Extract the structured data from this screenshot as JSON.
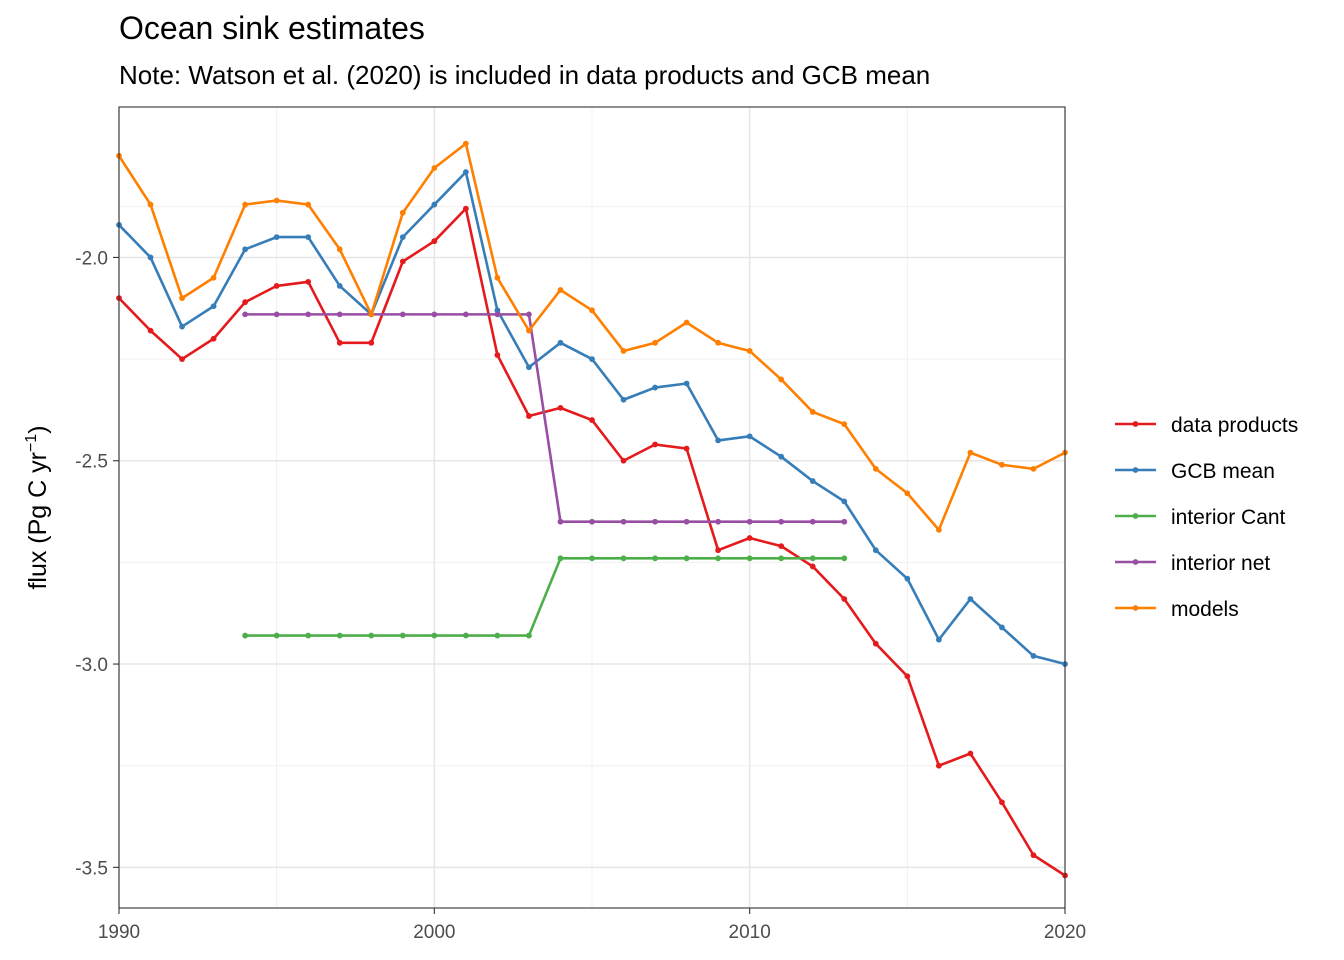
{
  "chart_data": {
    "type": "line",
    "title": "Ocean sink estimates",
    "subtitle": "Note: Watson et al. (2020) is included in data products and GCB mean",
    "xlabel": "",
    "ylabel": "flux (Pg C yr",
    "ylabel_sup": "−1",
    "ylabel_end": ")",
    "xlim": [
      1990,
      2020
    ],
    "ylim": [
      -3.6,
      -1.63
    ],
    "x_ticks": [
      1990,
      2000,
      2010,
      2020
    ],
    "x_tick_labels": [
      "1990",
      "2000",
      "2010",
      "2020"
    ],
    "y_ticks": [
      -2.0,
      -2.5,
      -3.0,
      -3.5
    ],
    "y_tick_labels": [
      "-2.0",
      "-2.5",
      "-3.0",
      "-3.5"
    ],
    "grid": true,
    "legend_position": "right",
    "series": [
      {
        "name": "data products",
        "color": "#E41A1C",
        "x": [
          1990,
          1991,
          1992,
          1993,
          1994,
          1995,
          1996,
          1997,
          1998,
          1999,
          2000,
          2001,
          2002,
          2003,
          2004,
          2005,
          2006,
          2007,
          2008,
          2009,
          2010,
          2011,
          2012,
          2013,
          2014,
          2015,
          2016,
          2017,
          2018,
          2019,
          2020
        ],
        "y": [
          -2.1,
          -2.18,
          -2.25,
          -2.2,
          -2.11,
          -2.07,
          -2.06,
          -2.21,
          -2.21,
          -2.01,
          -1.96,
          -1.88,
          -2.24,
          -2.39,
          -2.37,
          -2.4,
          -2.5,
          -2.46,
          -2.47,
          -2.72,
          -2.69,
          -2.71,
          -2.76,
          -2.84,
          -2.95,
          -3.03,
          -3.25,
          -3.22,
          -3.34,
          -3.47,
          -3.52
        ]
      },
      {
        "name": "GCB mean",
        "color": "#377EB8",
        "x": [
          1990,
          1991,
          1992,
          1993,
          1994,
          1995,
          1996,
          1997,
          1998,
          1999,
          2000,
          2001,
          2002,
          2003,
          2004,
          2005,
          2006,
          2007,
          2008,
          2009,
          2010,
          2011,
          2012,
          2013,
          2014,
          2015,
          2016,
          2017,
          2018,
          2019,
          2020
        ],
        "y": [
          -1.92,
          -2.0,
          -2.17,
          -2.12,
          -1.98,
          -1.95,
          -1.95,
          -2.07,
          -2.14,
          -1.95,
          -1.87,
          -1.79,
          -2.13,
          -2.27,
          -2.21,
          -2.25,
          -2.35,
          -2.32,
          -2.31,
          -2.45,
          -2.44,
          -2.49,
          -2.55,
          -2.6,
          -2.72,
          -2.79,
          -2.94,
          -2.84,
          -2.91,
          -2.98,
          -3.0
        ]
      },
      {
        "name": "interior Cant",
        "color": "#4DAF4A",
        "x": [
          1994,
          1995,
          1996,
          1997,
          1998,
          1999,
          2000,
          2001,
          2002,
          2003,
          2004,
          2005,
          2006,
          2007,
          2008,
          2009,
          2010,
          2011,
          2012,
          2013
        ],
        "y": [
          -2.93,
          -2.93,
          -2.93,
          -2.93,
          -2.93,
          -2.93,
          -2.93,
          -2.93,
          -2.93,
          -2.93,
          -2.74,
          -2.74,
          -2.74,
          -2.74,
          -2.74,
          -2.74,
          -2.74,
          -2.74,
          -2.74,
          -2.74
        ]
      },
      {
        "name": "interior net",
        "color": "#984EA3",
        "x": [
          1994,
          1995,
          1996,
          1997,
          1998,
          1999,
          2000,
          2001,
          2002,
          2003,
          2004,
          2005,
          2006,
          2007,
          2008,
          2009,
          2010,
          2011,
          2012,
          2013
        ],
        "y": [
          -2.14,
          -2.14,
          -2.14,
          -2.14,
          -2.14,
          -2.14,
          -2.14,
          -2.14,
          -2.14,
          -2.14,
          -2.65,
          -2.65,
          -2.65,
          -2.65,
          -2.65,
          -2.65,
          -2.65,
          -2.65,
          -2.65,
          -2.65
        ]
      },
      {
        "name": "models",
        "color": "#FF7F00",
        "x": [
          1990,
          1991,
          1992,
          1993,
          1994,
          1995,
          1996,
          1997,
          1998,
          1999,
          2000,
          2001,
          2002,
          2003,
          2004,
          2005,
          2006,
          2007,
          2008,
          2009,
          2010,
          2011,
          2012,
          2013,
          2014,
          2015,
          2016,
          2017,
          2018,
          2019,
          2020
        ],
        "y": [
          -1.75,
          -1.87,
          -2.1,
          -2.05,
          -1.87,
          -1.86,
          -1.87,
          -1.98,
          -2.14,
          -1.89,
          -1.78,
          -1.72,
          -2.05,
          -2.18,
          -2.08,
          -2.13,
          -2.23,
          -2.21,
          -2.16,
          -2.21,
          -2.23,
          -2.3,
          -2.38,
          -2.41,
          -2.52,
          -2.58,
          -2.67,
          -2.48,
          -2.51,
          -2.52,
          -2.48
        ]
      }
    ]
  }
}
